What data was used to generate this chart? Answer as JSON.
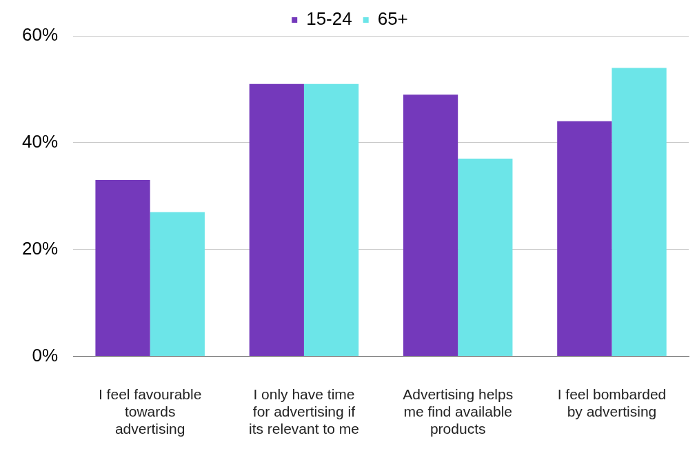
{
  "chart_data": {
    "type": "bar",
    "categories": [
      "I feel favourable towards advertising",
      "I only have time for advertising if its relevant to me",
      "Advertising helps me find available products",
      "I feel bombarded by advertising"
    ],
    "series": [
      {
        "name": "15-24",
        "color": "#7439bb",
        "values": [
          33,
          51,
          49,
          44
        ]
      },
      {
        "name": "65+",
        "color": "#6ce5e8",
        "values": [
          27,
          51,
          37,
          54
        ]
      }
    ],
    "ylim": [
      0,
      60
    ],
    "yticks": [
      {
        "value": 0,
        "label": "0%"
      },
      {
        "value": 20,
        "label": "20%"
      },
      {
        "value": 40,
        "label": "40%"
      },
      {
        "value": 60,
        "label": "60%"
      }
    ],
    "grid": "y",
    "legend": "top"
  }
}
